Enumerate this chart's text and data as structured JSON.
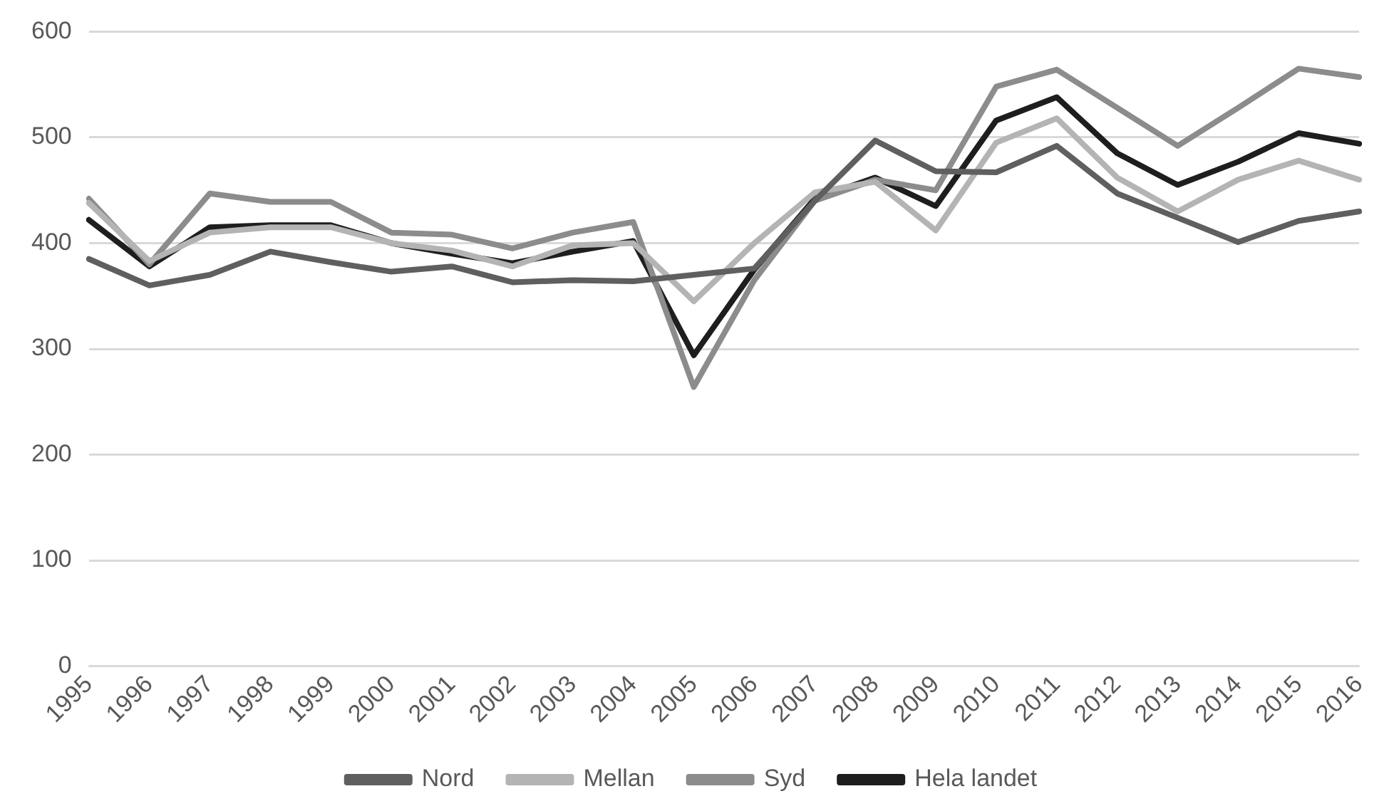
{
  "chart_data": {
    "type": "line",
    "categories": [
      "1995",
      "1996",
      "1997",
      "1998",
      "1999",
      "2000",
      "2001",
      "2002",
      "2003",
      "2004",
      "2005",
      "2006",
      "2007",
      "2008",
      "2009",
      "2010",
      "2011",
      "2012",
      "2013",
      "2014",
      "2015",
      "2016"
    ],
    "series": [
      {
        "name": "Nord",
        "color": "#5f5f5f",
        "values": [
          385,
          360,
          370,
          392,
          382,
          373,
          378,
          363,
          365,
          364,
          370,
          376,
          440,
          497,
          468,
          467,
          492,
          447,
          424,
          401,
          421,
          430
        ]
      },
      {
        "name": "Mellan",
        "color": "#b4b4b4",
        "values": [
          438,
          383,
          410,
          415,
          415,
          400,
          393,
          378,
          398,
          400,
          345,
          400,
          448,
          458,
          412,
          495,
          518,
          462,
          430,
          460,
          478,
          460
        ]
      },
      {
        "name": "Syd",
        "color": "#8c8c8c",
        "values": [
          442,
          380,
          447,
          439,
          439,
          410,
          408,
          395,
          410,
          420,
          264,
          365,
          440,
          460,
          450,
          548,
          564,
          528,
          492,
          528,
          565,
          557
        ]
      },
      {
        "name": "Hela landet",
        "color": "#1e1e1e",
        "values": [
          422,
          378,
          415,
          417,
          417,
          400,
          390,
          381,
          392,
          402,
          294,
          375,
          442,
          462,
          435,
          516,
          538,
          485,
          455,
          477,
          504,
          494
        ]
      }
    ],
    "ylim": [
      0,
      600
    ],
    "yticks": [
      0,
      100,
      200,
      300,
      400,
      500,
      600
    ],
    "grid": "y",
    "legend": "bottom",
    "marker": "none",
    "line_style": "solid"
  }
}
